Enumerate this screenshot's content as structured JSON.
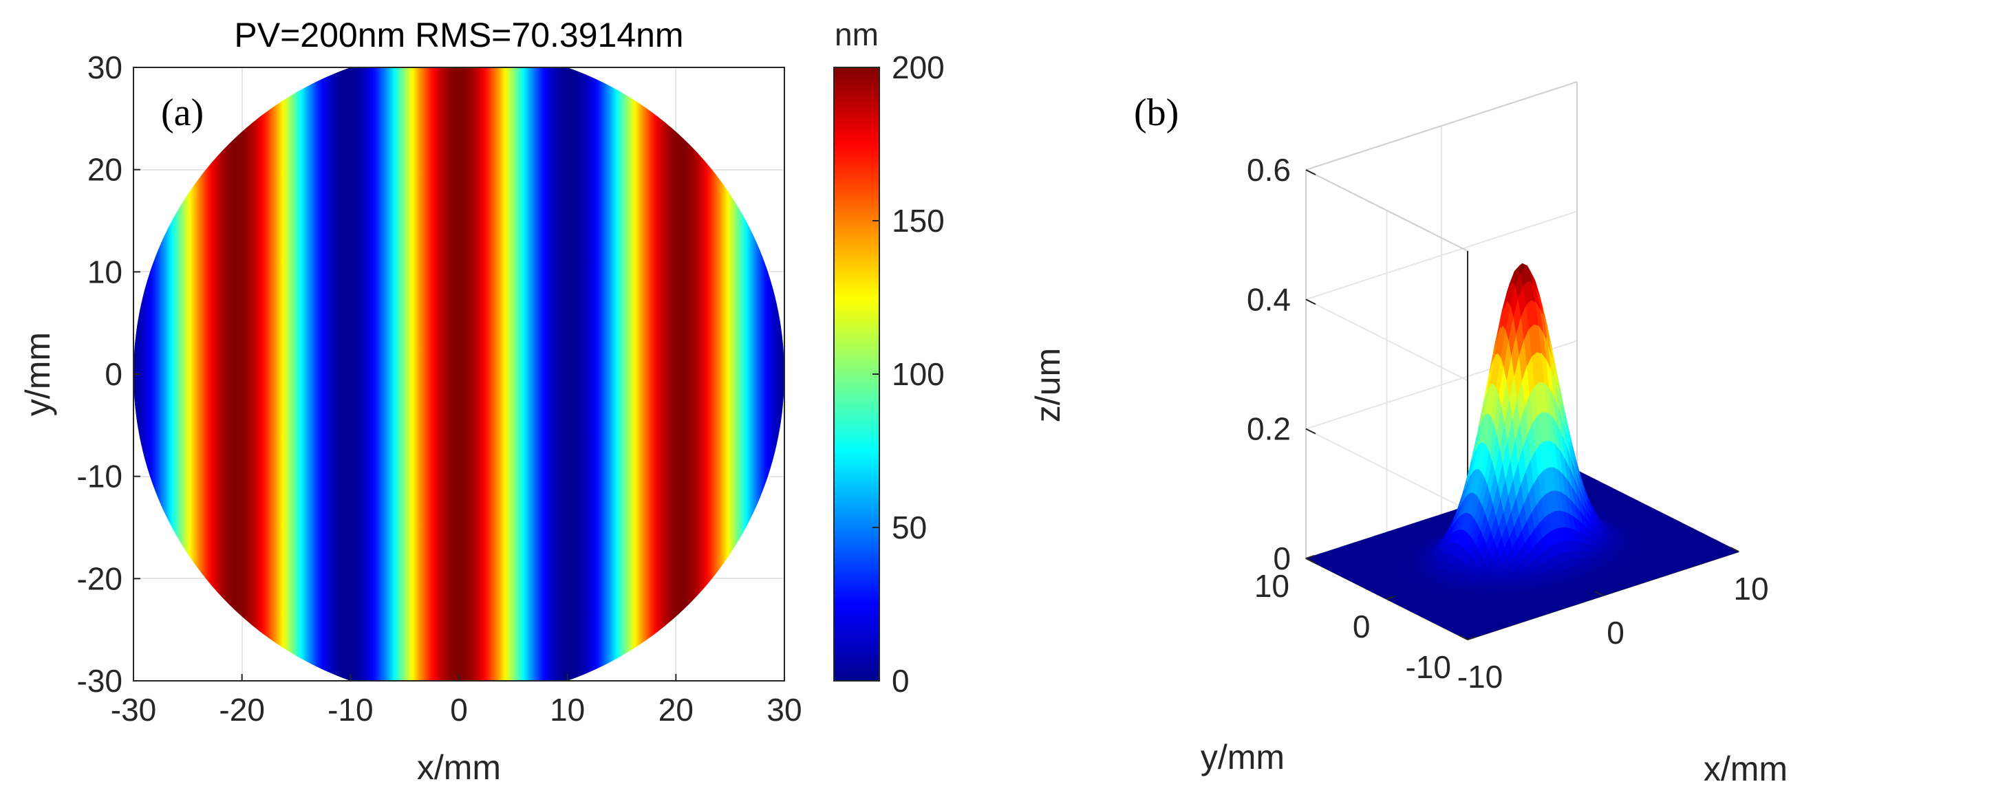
{
  "colors": {
    "jet": [
      "#00008f",
      "#0000ff",
      "#0080ff",
      "#00ffff",
      "#80ff80",
      "#ffff00",
      "#ff8000",
      "#ff0000",
      "#800000"
    ],
    "axis": "#262626",
    "grid": "#e6e6e6"
  },
  "chart_data": [
    {
      "id": "a",
      "type": "heatmap",
      "panel_label": "(a)",
      "title": "PV=200nm  RMS=70.3914nm",
      "xlabel": "x/mm",
      "ylabel": "y/mm",
      "xlim": [
        -30,
        30
      ],
      "ylim": [
        -30,
        30
      ],
      "xticks": [
        "-30",
        "-20",
        "-10",
        "0",
        "10",
        "20",
        "30"
      ],
      "yticks": [
        "30",
        "20",
        "10",
        "0",
        "-10",
        "-20",
        "-30"
      ],
      "aperture_radius_mm": 30,
      "surface": "z = 100 + 100*cos(2*pi*x/period)",
      "period_mm": 20.5,
      "pv_nm": 200,
      "rms_nm": 70.3914,
      "colorbar": {
        "unit": "nm",
        "range": [
          0,
          200
        ],
        "ticks": [
          "200",
          "150",
          "100",
          "50",
          "0"
        ]
      }
    },
    {
      "id": "b",
      "type": "surface3d",
      "panel_label": "(b)",
      "xlabel": "x/mm",
      "ylabel": "y/mm",
      "zlabel": "z/um",
      "xlim": [
        -10,
        10
      ],
      "ylim": [
        -10,
        10
      ],
      "zlim": [
        0,
        0.6
      ],
      "xticks": [
        "-10",
        "0",
        "10"
      ],
      "yticks": [
        "10",
        "0",
        "-10"
      ],
      "zticks": [
        "0.6",
        "0.4",
        "0.2",
        "0"
      ],
      "surface": "gaussian bump",
      "peak_um": 0.45,
      "sigma_mm": 2.2
    }
  ]
}
